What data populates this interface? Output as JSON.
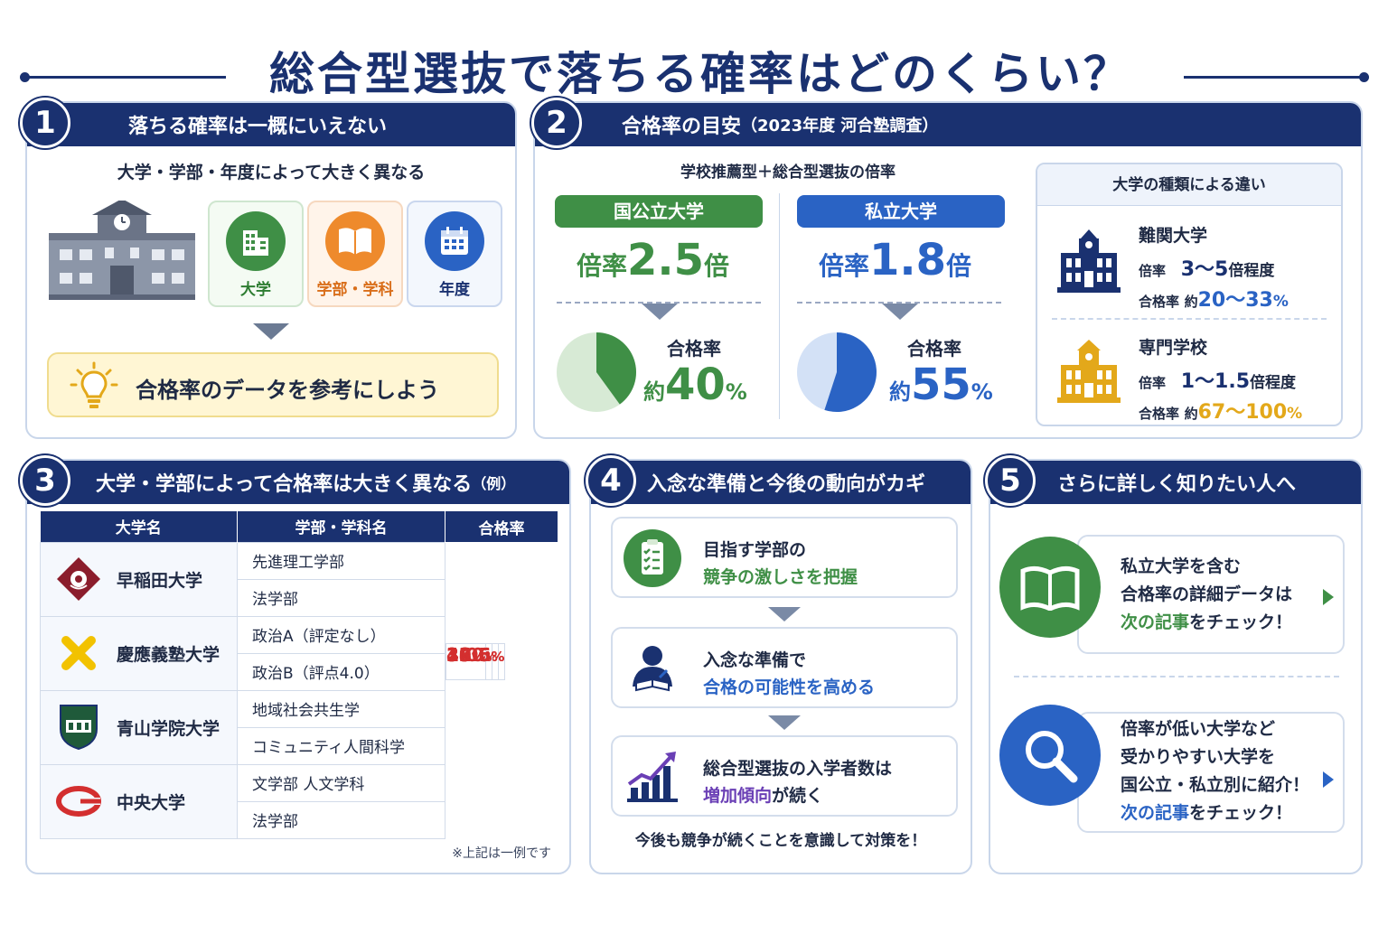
{
  "title": "総合型選抜で落ちる確率はどのくらい？",
  "colors": {
    "navy": "#1a3170",
    "green": "#3f8f46",
    "blue": "#2a63c4",
    "orange": "#ee8a2c",
    "red": "#d32f2f",
    "purple": "#6a3fb5",
    "gold": "#e3a81a"
  },
  "s1": {
    "num": "1",
    "heading": "落ちる確率は一概にいえない",
    "subtitle": "大学・学部・年度によって大きく異なる",
    "factors": [
      {
        "label": "大学",
        "icon": "building-icon"
      },
      {
        "label": "学部・学科",
        "icon": "book-icon"
      },
      {
        "label": "年度",
        "icon": "calendar-icon"
      }
    ],
    "tip": "合格率のデータを参考にしよう"
  },
  "s2": {
    "num": "2",
    "heading": "合格率の目安",
    "heading_note": "（2023年度 河合塾調査）",
    "subtitle": "学校推薦型＋総合型選抜の倍率",
    "national": {
      "label": "国公立大学",
      "rate_prefix": "倍率",
      "rate_value": "2.5",
      "rate_unit": "倍",
      "pass_label": "合格率",
      "pass_prefix": "約",
      "pass_value": "40",
      "pass_unit": "%",
      "pass_fraction": 0.4
    },
    "private": {
      "label": "私立大学",
      "rate_prefix": "倍率",
      "rate_value": "1.8",
      "rate_unit": "倍",
      "pass_label": "合格率",
      "pass_prefix": "約",
      "pass_value": "55",
      "pass_unit": "%",
      "pass_fraction": 0.55
    },
    "kinds": {
      "heading": "大学の種類による違い",
      "rows": [
        {
          "name": "難関大学",
          "rate_label": "倍率",
          "rate": "3～5",
          "rate_unit": "倍程度",
          "pass_label": "合格率",
          "pass_prefix": "約",
          "pass": "20～33",
          "pass_unit": "%"
        },
        {
          "name": "専門学校",
          "rate_label": "倍率",
          "rate": "1～1.5",
          "rate_unit": "倍程度",
          "pass_label": "合格率",
          "pass_prefix": "約",
          "pass": "67～100",
          "pass_unit": "%"
        }
      ]
    }
  },
  "s3": {
    "num": "3",
    "heading": "大学・学部によって合格率は大きく異なる",
    "heading_note": "（例）",
    "columns": [
      "大学名",
      "学部・学科名",
      "合格率"
    ],
    "rows": [
      {
        "university": "早稲田大学",
        "faculties": [
          {
            "name": "先進理工学部",
            "rate": "100",
            "unit": "%"
          },
          {
            "name": "法学部",
            "rate": "3.0",
            "unit": "%"
          }
        ]
      },
      {
        "university": "慶應義塾大学",
        "faculties": [
          {
            "name": "政治A（評定なし）",
            "rate": "16.6",
            "unit": "%"
          },
          {
            "name": "政治B（評点4.0）",
            "rate": "34",
            "unit": "%"
          }
        ]
      },
      {
        "university": "青山学院大学",
        "faculties": [
          {
            "name": "地域社会共生学",
            "rate": "42",
            "unit": "%"
          },
          {
            "name": "コミュニティ人間科学",
            "rate": "19",
            "unit": "%"
          }
        ]
      },
      {
        "university": "中央大学",
        "faculties": [
          {
            "name": "文学部 人文学科",
            "rate": "33",
            "unit": "%"
          },
          {
            "name": "法学部",
            "rate": "23.5",
            "unit": "%"
          }
        ]
      }
    ],
    "note": "※上記は一例です"
  },
  "s4": {
    "num": "4",
    "heading": "入念な準備と今後の動向がカギ",
    "steps": [
      {
        "line1": "目指す学部の",
        "line2": "競争の激しさを把握",
        "icon": "checklist-icon"
      },
      {
        "line1": "入念な準備で",
        "line2": "合格の可能性を高める",
        "icon": "student-studying-icon"
      },
      {
        "line1": "総合型選抜の入学者数は",
        "line2a": "増加傾向",
        "line2b": "が続く",
        "icon": "growth-chart-icon"
      }
    ],
    "footer": "今後も競争が続くことを意識して対策を！"
  },
  "s5": {
    "num": "5",
    "heading": "さらに詳しく知りたい人へ",
    "card1": {
      "lines": [
        "私立大学を含む",
        "合格率の詳細データは"
      ],
      "link": "次の記事",
      "link_suffix": "をチェック！"
    },
    "card2": {
      "lines": [
        "倍率が低い大学など",
        "受かりやすい大学を",
        "国公立・私立別に紹介！"
      ],
      "link": "次の記事",
      "link_suffix": "をチェック！"
    }
  }
}
